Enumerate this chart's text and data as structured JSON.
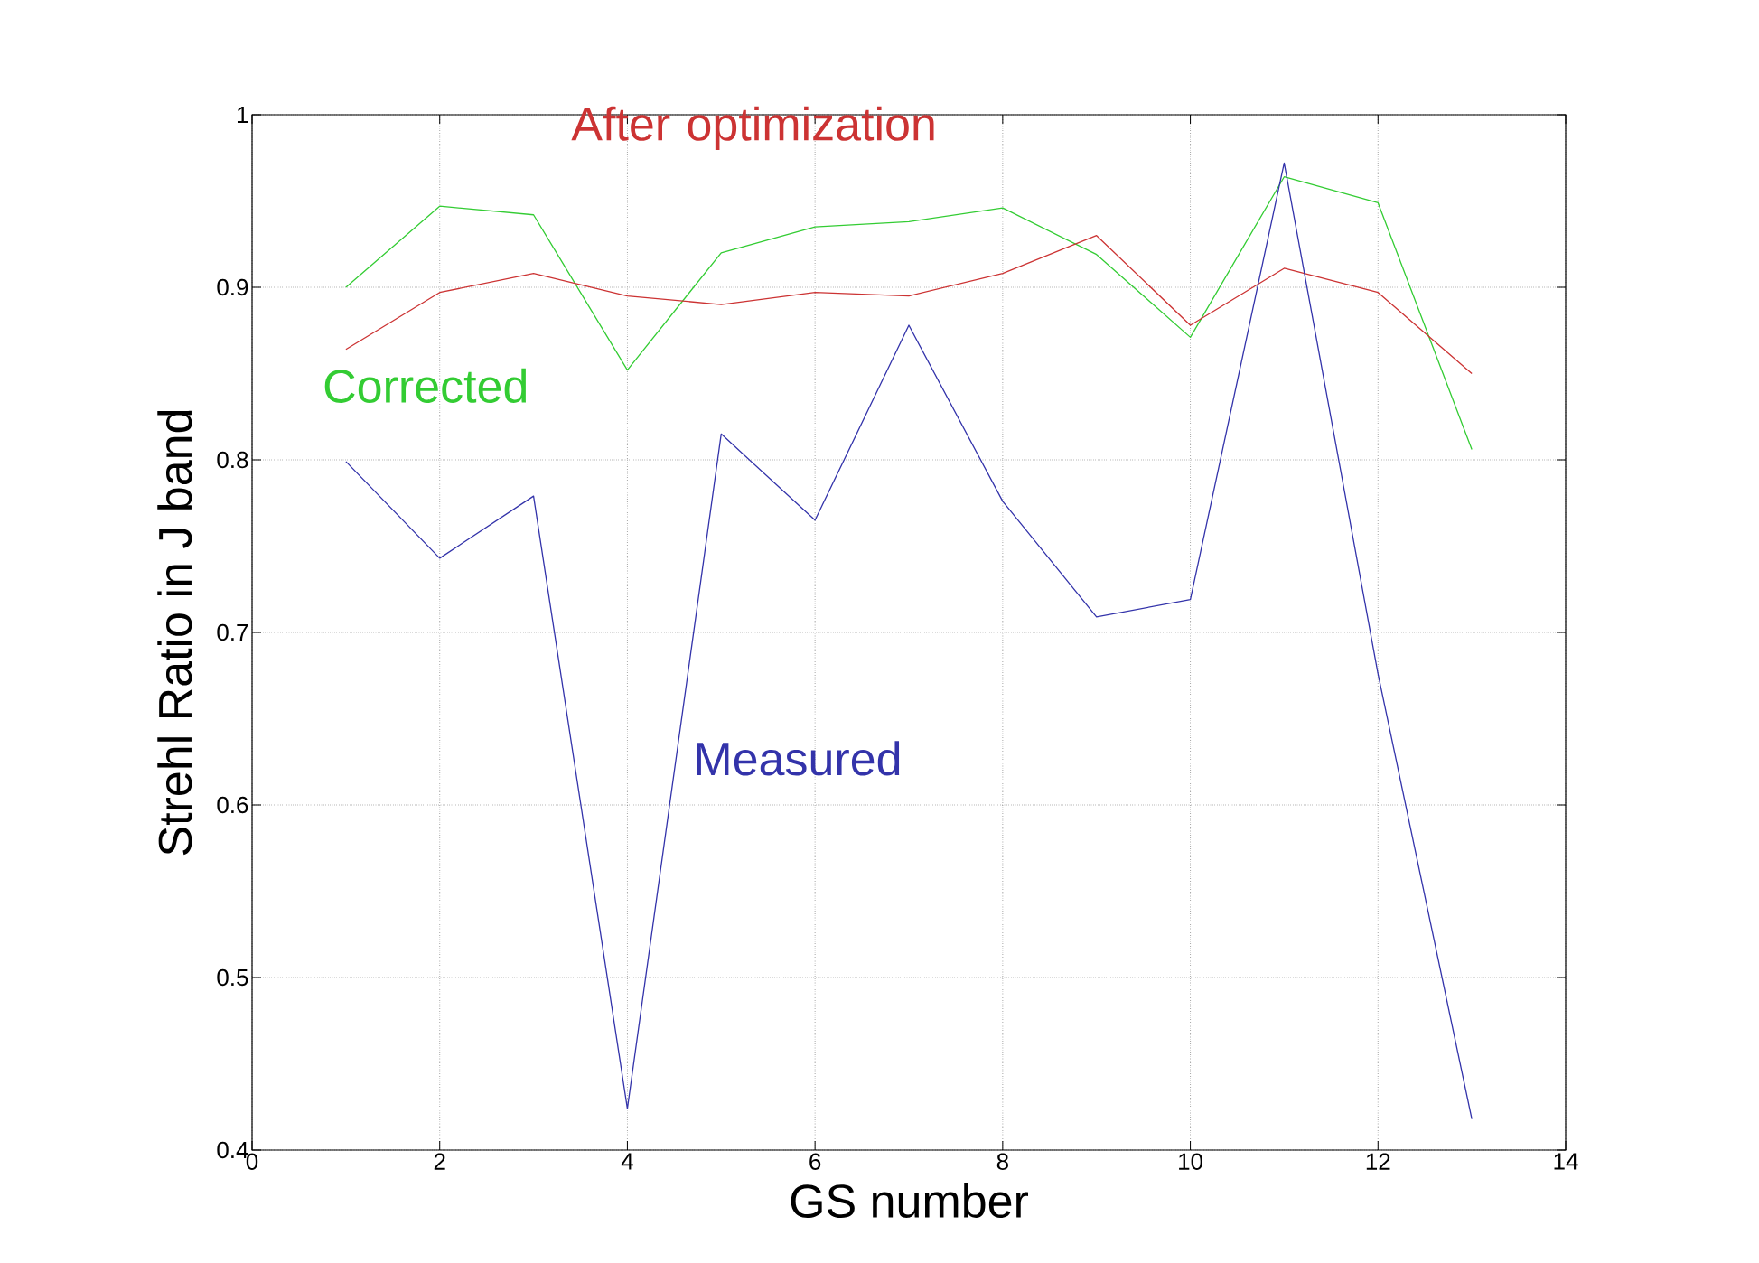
{
  "chart_data": {
    "type": "line",
    "xlabel": "GS number",
    "ylabel": "Strehl Ratio in J band",
    "x": [
      1,
      2,
      3,
      4,
      5,
      6,
      7,
      8,
      9,
      10,
      11,
      12,
      13
    ],
    "series": [
      {
        "name": "Corrected",
        "color": "#33cc33",
        "values": [
          0.9,
          0.947,
          0.942,
          0.852,
          0.92,
          0.935,
          0.938,
          0.946,
          0.919,
          0.871,
          0.964,
          0.949,
          0.806
        ]
      },
      {
        "name": "After optimization",
        "color": "#cc3333",
        "values": [
          0.864,
          0.897,
          0.908,
          0.895,
          0.89,
          0.897,
          0.895,
          0.908,
          0.93,
          0.878,
          0.911,
          0.897,
          0.85
        ]
      },
      {
        "name": "Measured",
        "color": "#3333aa",
        "values": [
          0.799,
          0.743,
          0.779,
          0.424,
          0.815,
          0.765,
          0.878,
          0.776,
          0.709,
          0.719,
          0.972,
          0.676,
          0.418
        ]
      }
    ],
    "xlim": [
      0,
      14
    ],
    "ylim": [
      0.4,
      1
    ],
    "xticks": [
      0,
      2,
      4,
      6,
      8,
      10,
      12,
      14
    ],
    "yticks": [
      0.4,
      0.5,
      0.6,
      0.7,
      0.8,
      0.9,
      1
    ],
    "grid": true,
    "legend": false,
    "marker": "none",
    "line_style": "solid"
  }
}
